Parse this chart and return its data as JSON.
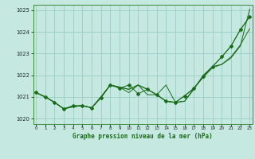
{
  "title": "Graphe pression niveau de la mer (hPa)",
  "background_color": "#c5e8e0",
  "grid_color": "#90c8c0",
  "line_color": "#1a6b1a",
  "xlim": [
    -0.3,
    23.3
  ],
  "ylim": [
    1019.75,
    1025.25
  ],
  "yticks": [
    1020,
    1021,
    1022,
    1023,
    1024,
    1025
  ],
  "xticks": [
    0,
    1,
    2,
    3,
    4,
    5,
    6,
    7,
    8,
    9,
    10,
    11,
    12,
    13,
    14,
    15,
    16,
    17,
    18,
    19,
    20,
    21,
    22,
    23
  ],
  "series_marker": [
    1021.2,
    1021.0,
    1020.75,
    1020.45,
    1020.6,
    1020.6,
    1020.5,
    1020.95,
    1021.55,
    1021.4,
    1021.55,
    1021.15,
    1021.35,
    1021.1,
    1020.8,
    1020.75,
    1021.05,
    1021.4,
    1021.95,
    1022.4,
    1022.85,
    1023.35,
    1024.1,
    1024.7
  ],
  "series_line1": [
    1021.2,
    1021.0,
    1020.75,
    1020.45,
    1020.55,
    1020.6,
    1020.5,
    1021.0,
    1021.55,
    1021.45,
    1021.2,
    1021.55,
    1021.35,
    1021.1,
    1020.8,
    1020.75,
    1020.8,
    1021.4,
    1021.9,
    1022.35,
    1022.5,
    1022.8,
    1023.35,
    1025.05
  ],
  "series_line2": [
    1021.2,
    1021.0,
    1020.75,
    1020.45,
    1020.55,
    1020.6,
    1020.5,
    1021.0,
    1021.55,
    1021.45,
    1021.35,
    1021.55,
    1021.1,
    1021.1,
    1021.55,
    1020.75,
    1020.8,
    1021.35,
    1022.0,
    1022.4,
    1022.5,
    1022.85,
    1023.4,
    1024.15
  ],
  "series_line3": [
    1021.2,
    1021.0,
    1020.75,
    1020.45,
    1020.55,
    1020.6,
    1020.5,
    1021.0,
    1021.55,
    1021.45,
    1021.35,
    1021.55,
    1021.35,
    1021.1,
    1020.8,
    1020.75,
    1021.05,
    1021.4,
    1021.95,
    1022.4,
    1022.85,
    1023.35,
    1024.1,
    1024.7
  ]
}
